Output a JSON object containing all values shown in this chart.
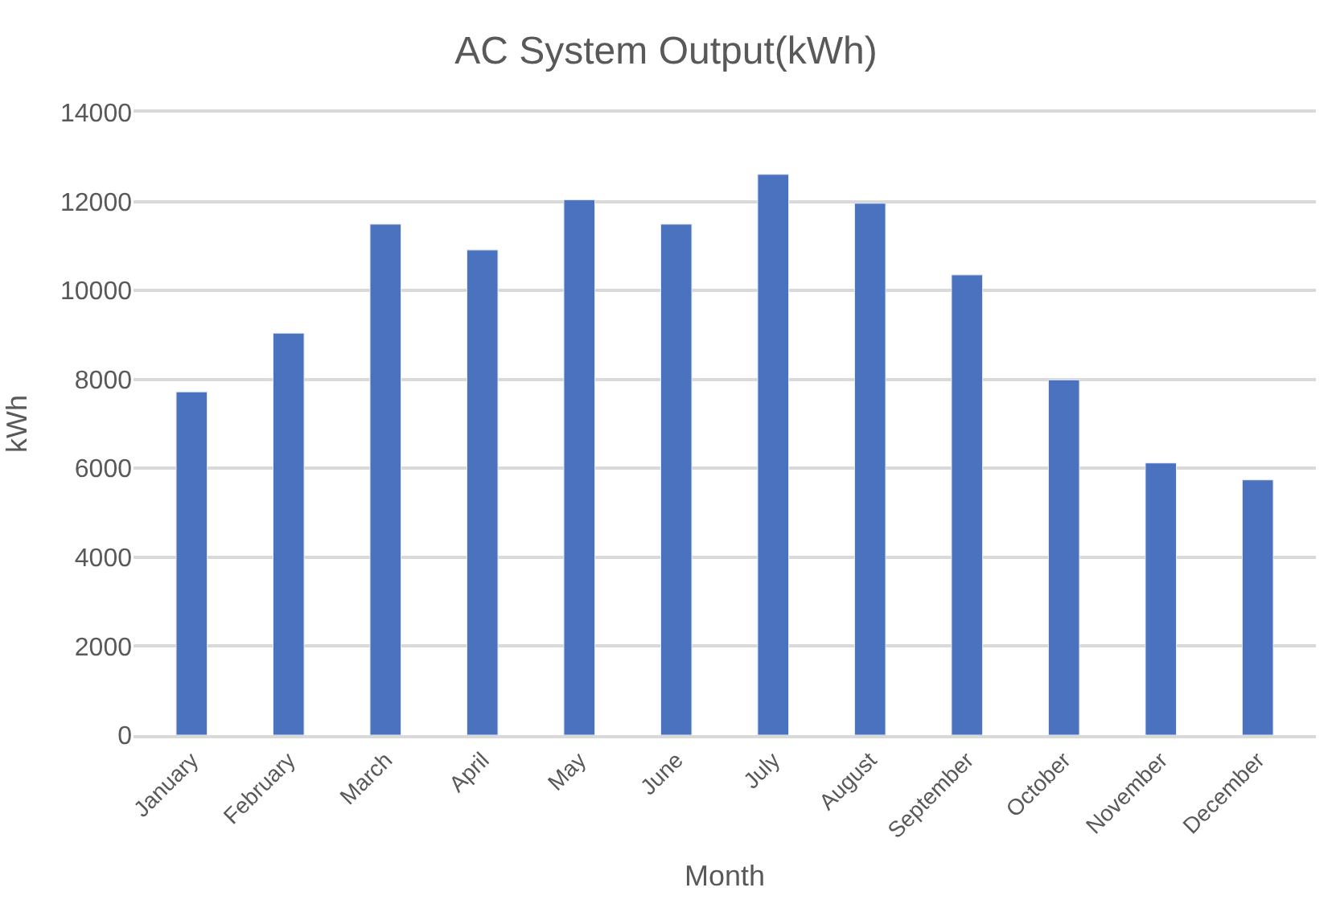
{
  "chart_data": {
    "type": "bar",
    "title": "AC System Output(kWh)",
    "xlabel": "Month",
    "ylabel": "kWh",
    "categories": [
      "January",
      "February",
      "March",
      "April",
      "May",
      "June",
      "July",
      "August",
      "September",
      "October",
      "November",
      "December"
    ],
    "values": [
      7720,
      9040,
      11490,
      10910,
      12040,
      11490,
      12610,
      11960,
      10350,
      7990,
      6120,
      5740
    ],
    "color": "#4a72bf",
    "ylim": [
      0,
      14000
    ],
    "yticks": [
      0,
      2000,
      4000,
      6000,
      8000,
      10000,
      12000,
      14000
    ],
    "grid": "y"
  }
}
